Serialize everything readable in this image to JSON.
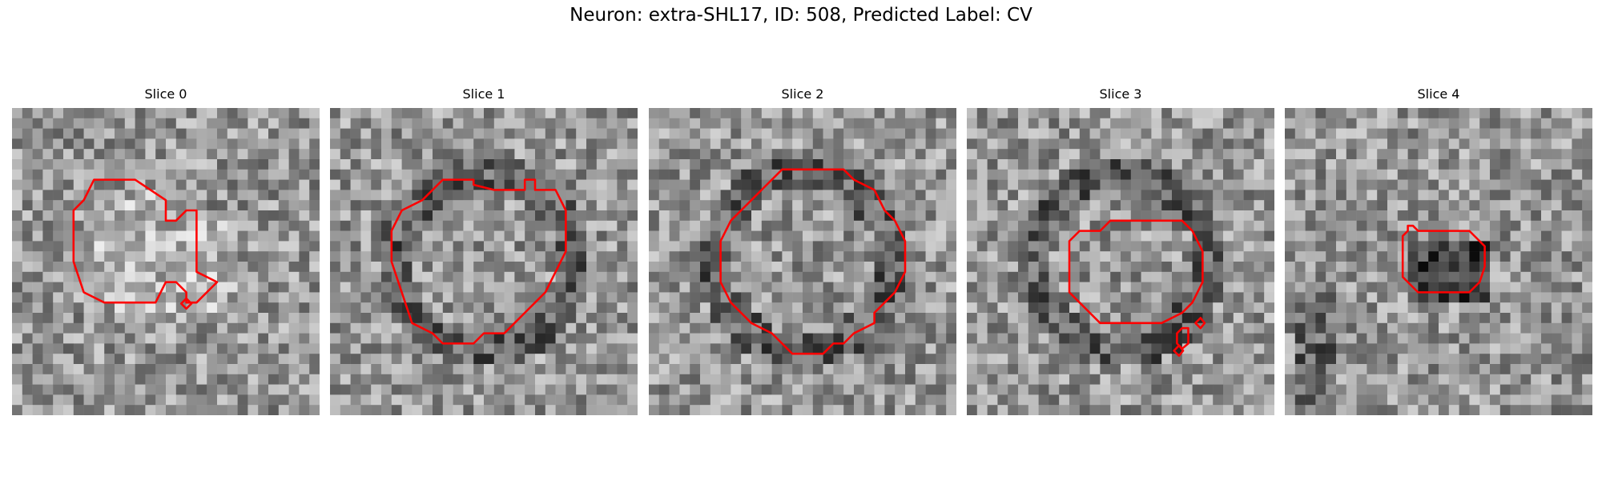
{
  "figure": {
    "title": "Neuron: extra-SHL17, ID: 508, Predicted Label: CV",
    "contour_color": "#ff0000",
    "colormap": "gray"
  },
  "slices": [
    {
      "title": "Slice 0",
      "dark_ring": false,
      "dark_blob": false
    },
    {
      "title": "Slice 1",
      "dark_ring": true,
      "dark_blob": false
    },
    {
      "title": "Slice 2",
      "dark_ring": true,
      "dark_blob": false
    },
    {
      "title": "Slice 3",
      "dark_ring": true,
      "dark_blob": false
    },
    {
      "title": "Slice 4",
      "dark_ring": false,
      "dark_blob": true
    }
  ]
}
